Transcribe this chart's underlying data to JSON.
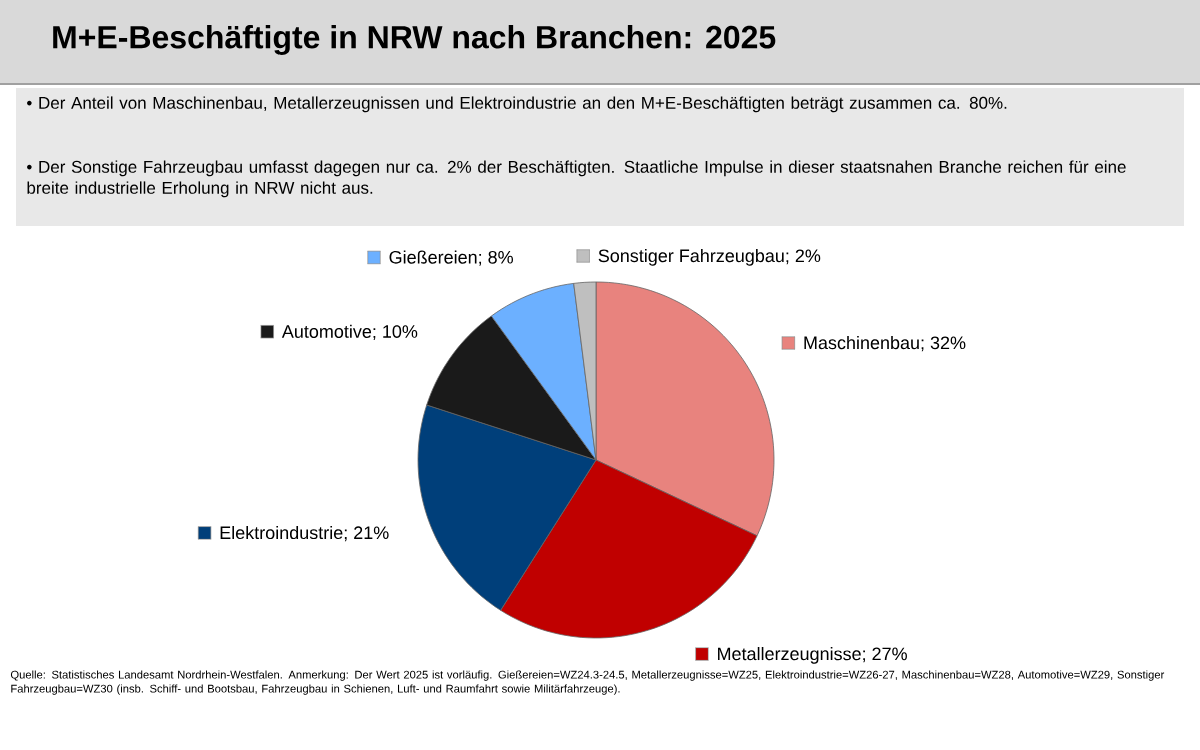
{
  "chart_data": {
    "type": "pie",
    "title": "M+E-Beschäftigte in NRW nach Branchen: 2025",
    "legend": "right",
    "subtitle": [
      "•\tDer Anteil von Maschinenbau, Metallerzeugnissen und Elektroindustrie an den M+E-Beschäftigten beträgt zusammen ca. 80%.",
      "•\tDer Sonstige Fahrzeugbau umfasst dagegen nur ca. 2% der Beschäftigten. Staatliche Impulse in dieser staatsnahen Branche reichen für eine breite industrielle Erholung in NRW nicht aus."
    ],
    "categories": [
      "Maschinenbau; 32%",
      "Metallerzeugnisse; 27%",
      "Elektroindustrie; 21%",
      "Automotive; 10%",
      "Gießereien; 8%",
      "Sonstiger Fahrzeugbau; 2%"
    ],
    "values": [
      32,
      27,
      21,
      10,
      8,
      2
    ],
    "colors": [
      "#e8837e",
      "#c00000",
      "#003f7a",
      "#1a1a1a",
      "#6cb0ff",
      "#bfbfbf"
    ],
    "annotations": [
      "Quelle: Statistisches Landesamt Nordrhein-Westfalen. Anmerkung: Der Wert 2025 ist vorläufig. Gießereien=WZ24.3-24.5, Metallerzeugnisse=WZ25, Elektroindustrie=WZ26-27, Maschinenbau=WZ28, Automotive=WZ29, Sonstiger Fahrzeugbau=WZ30 (insb. Schiff- und Bootsbau, Fahrzeugbau in Schienen, Luft- und Raumfahrt sowie Militärfahrzeuge)."
    ]
  }
}
